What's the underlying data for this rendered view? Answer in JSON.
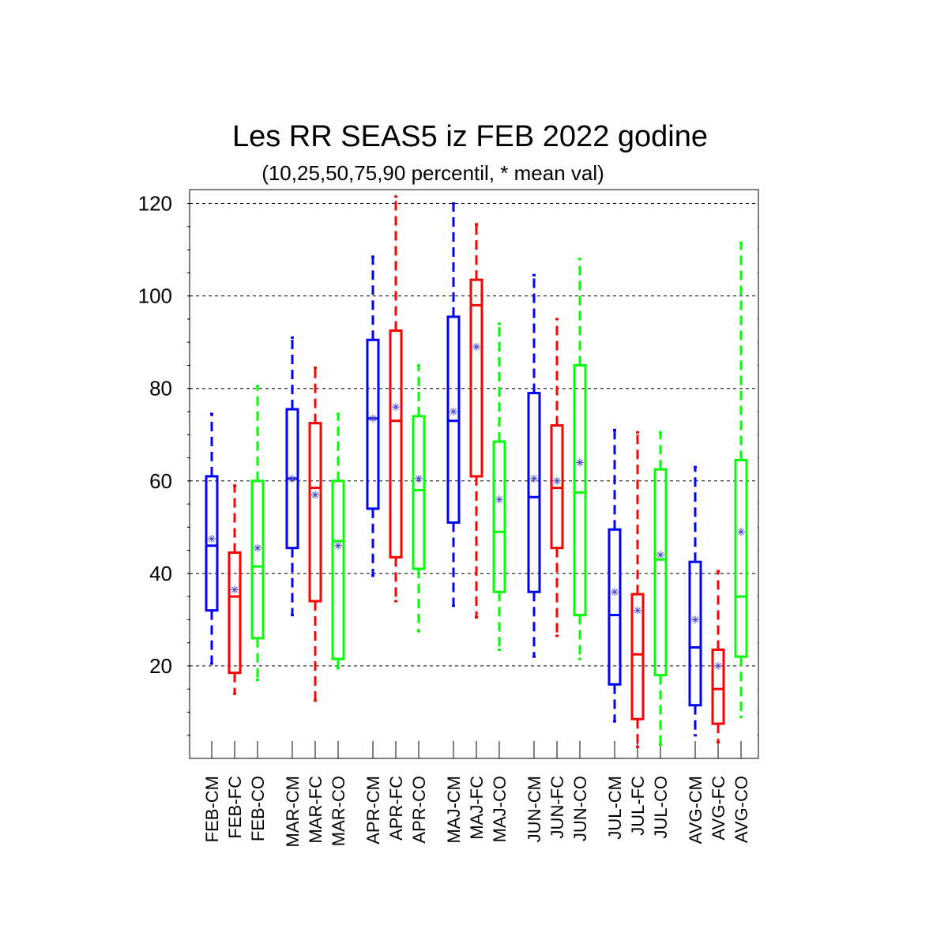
{
  "chart_data": {
    "type": "boxplot",
    "title": "Les RR SEAS5 iz FEB 2022 godine",
    "subtitle": "(10,25,50,75,90 percentil, * mean val)",
    "ylim": [
      0,
      123
    ],
    "yticks": [
      20,
      40,
      60,
      80,
      100,
      120
    ],
    "grid": "y-dashed",
    "series_colors": {
      "CM": "#0000ff",
      "FC": "#ff0000",
      "CO": "#00ff00"
    },
    "boxes": [
      {
        "label": "FEB-CM",
        "kind": "CM",
        "p10": 20.5,
        "p25": 32.0,
        "p50": 46.0,
        "p75": 61.0,
        "p90": 74.5,
        "mean": 47.5
      },
      {
        "label": "FEB-FC",
        "kind": "FC",
        "p10": 14.0,
        "p25": 18.5,
        "p50": 35.0,
        "p75": 44.5,
        "p90": 59.0,
        "mean": 36.5
      },
      {
        "label": "FEB-CO",
        "kind": "CO",
        "p10": 17.0,
        "p25": 26.0,
        "p50": 41.5,
        "p75": 60.0,
        "p90": 80.5,
        "mean": 45.5
      },
      {
        "label": "MAR-CM",
        "kind": "CM",
        "p10": 31.0,
        "p25": 45.5,
        "p50": 60.5,
        "p75": 75.5,
        "p90": 91.0,
        "mean": 60.5
      },
      {
        "label": "MAR-FC",
        "kind": "FC",
        "p10": 12.5,
        "p25": 34.0,
        "p50": 58.5,
        "p75": 72.5,
        "p90": 84.5,
        "mean": 57.0
      },
      {
        "label": "MAR-CO",
        "kind": "CO",
        "p10": 19.5,
        "p25": 21.5,
        "p50": 47.0,
        "p75": 60.0,
        "p90": 74.5,
        "mean": 46.0
      },
      {
        "label": "APR-CM",
        "kind": "CM",
        "p10": 39.5,
        "p25": 54.0,
        "p50": 73.5,
        "p75": 90.5,
        "p90": 108.5,
        "mean": 73.5
      },
      {
        "label": "APR-FC",
        "kind": "FC",
        "p10": 34.0,
        "p25": 43.5,
        "p50": 73.0,
        "p75": 92.5,
        "p90": 121.5,
        "mean": 76.0
      },
      {
        "label": "APR-CO",
        "kind": "CO",
        "p10": 27.5,
        "p25": 41.0,
        "p50": 58.0,
        "p75": 74.0,
        "p90": 85.0,
        "mean": 60.5
      },
      {
        "label": "MAJ-CM",
        "kind": "CM",
        "p10": 33.0,
        "p25": 51.0,
        "p50": 73.0,
        "p75": 95.5,
        "p90": 120.0,
        "mean": 75.0
      },
      {
        "label": "MAJ-FC",
        "kind": "FC",
        "p10": 30.5,
        "p25": 61.0,
        "p50": 98.0,
        "p75": 103.5,
        "p90": 115.5,
        "mean": 89.0
      },
      {
        "label": "MAJ-CO",
        "kind": "CO",
        "p10": 23.5,
        "p25": 36.0,
        "p50": 49.0,
        "p75": 68.5,
        "p90": 94.0,
        "mean": 56.0
      },
      {
        "label": "JUN-CM",
        "kind": "CM",
        "p10": 22.0,
        "p25": 36.0,
        "p50": 56.5,
        "p75": 79.0,
        "p90": 104.5,
        "mean": 60.5
      },
      {
        "label": "JUN-FC",
        "kind": "FC",
        "p10": 26.5,
        "p25": 45.5,
        "p50": 58.5,
        "p75": 72.0,
        "p90": 95.0,
        "mean": 60.0
      },
      {
        "label": "JUN-CO",
        "kind": "CO",
        "p10": 21.5,
        "p25": 31.0,
        "p50": 57.5,
        "p75": 85.0,
        "p90": 108.0,
        "mean": 64.0
      },
      {
        "label": "JUL-CM",
        "kind": "CM",
        "p10": 8.0,
        "p25": 16.0,
        "p50": 31.0,
        "p75": 49.5,
        "p90": 71.0,
        "mean": 36.0
      },
      {
        "label": "JUL-FC",
        "kind": "FC",
        "p10": 2.5,
        "p25": 8.5,
        "p50": 22.5,
        "p75": 35.5,
        "p90": 70.5,
        "mean": 32.0
      },
      {
        "label": "JUL-CO",
        "kind": "CO",
        "p10": 3.0,
        "p25": 18.0,
        "p50": 43.0,
        "p75": 62.5,
        "p90": 70.5,
        "mean": 44.0
      },
      {
        "label": "AVG-CM",
        "kind": "CM",
        "p10": 5.0,
        "p25": 11.5,
        "p50": 24.0,
        "p75": 42.5,
        "p90": 63.0,
        "mean": 30.0
      },
      {
        "label": "AVG-FC",
        "kind": "FC",
        "p10": 3.5,
        "p25": 7.5,
        "p50": 15.0,
        "p75": 23.5,
        "p90": 40.5,
        "mean": 20.0
      },
      {
        "label": "AVG-CO",
        "kind": "CO",
        "p10": 9.0,
        "p25": 22.0,
        "p50": 35.0,
        "p75": 64.5,
        "p90": 111.5,
        "mean": 49.0
      }
    ]
  }
}
